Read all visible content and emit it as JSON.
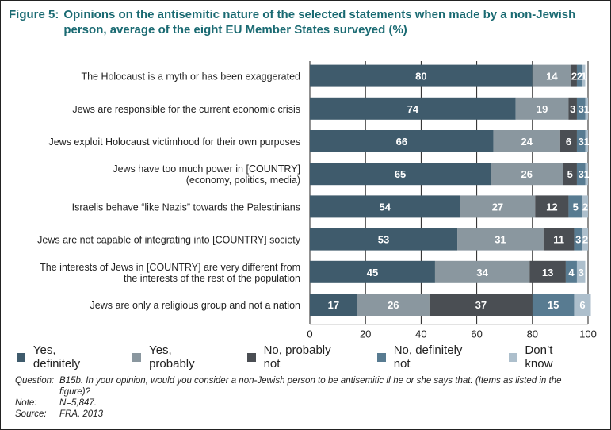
{
  "chart_data": {
    "type": "bar",
    "orientation": "horizontal-stacked",
    "title_number": "Figure 5:",
    "title": "Opinions on the antisemitic nature of the selected statements when made by a non-Jewish person, average of the eight EU Member States surveyed (%)",
    "categories": [
      [
        "The Holocaust is a myth or has been exaggerated"
      ],
      [
        "Jews are responsible for the current economic crisis"
      ],
      [
        "Jews exploit Holocaust victimhood for their own purposes"
      ],
      [
        "Jews have too much power in [COUNTRY]",
        "(economy, politics, media)"
      ],
      [
        "Israelis behave “like Nazis” towards the Palestinians"
      ],
      [
        "Jews are not capable of integrating into [COUNTRY] society"
      ],
      [
        "The interests of Jews in [COUNTRY] are very different from",
        "the interests of the rest of the population"
      ],
      [
        "Jews are only a religious group and not a nation"
      ]
    ],
    "series": [
      {
        "name": "Yes, definitely",
        "color": "#3f5b6c",
        "values": [
          80,
          74,
          66,
          65,
          54,
          53,
          45,
          17
        ]
      },
      {
        "name": "Yes, probably",
        "color": "#8a979f",
        "values": [
          14,
          19,
          24,
          26,
          27,
          31,
          34,
          26
        ]
      },
      {
        "name": "No, probably not",
        "color": "#4a4e53",
        "values": [
          2,
          3,
          6,
          5,
          12,
          11,
          13,
          37
        ]
      },
      {
        "name": "No, definitely not",
        "color": "#587b91",
        "values": [
          2,
          3,
          3,
          3,
          5,
          3,
          4,
          15
        ]
      },
      {
        "name": "Don’t know",
        "color": "#adbfcc",
        "values": [
          1,
          1,
          1,
          1,
          2,
          2,
          3,
          6
        ]
      }
    ],
    "xlim": [
      0,
      100
    ],
    "xticks": [
      "0",
      "20",
      "40",
      "60",
      "80",
      "100"
    ],
    "grid": true,
    "legend": "bottom"
  },
  "notes": [
    {
      "key": "Question:",
      "value": "B15b. In your opinion, would you consider a non-Jewish person to be antisemitic if he or she says that: (Items as listed in the figure)?"
    },
    {
      "key": "Note:",
      "value": "N=5,847."
    },
    {
      "key": "Source:",
      "value": "FRA, 2013"
    }
  ]
}
